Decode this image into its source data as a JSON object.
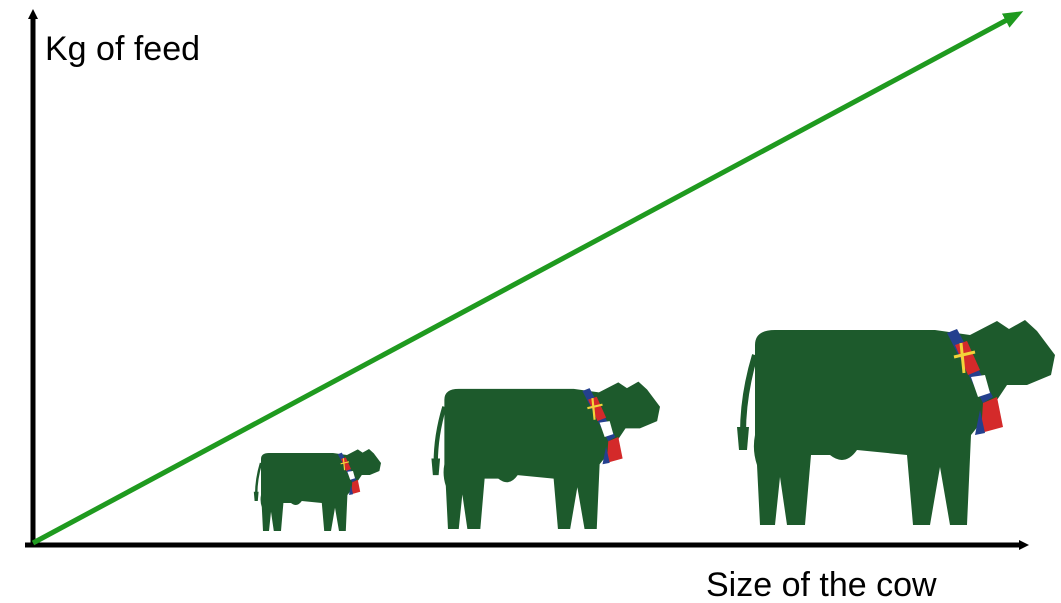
{
  "y_axis_label": "Kg of feed",
  "x_axis_label": "Size of the cow"
}
